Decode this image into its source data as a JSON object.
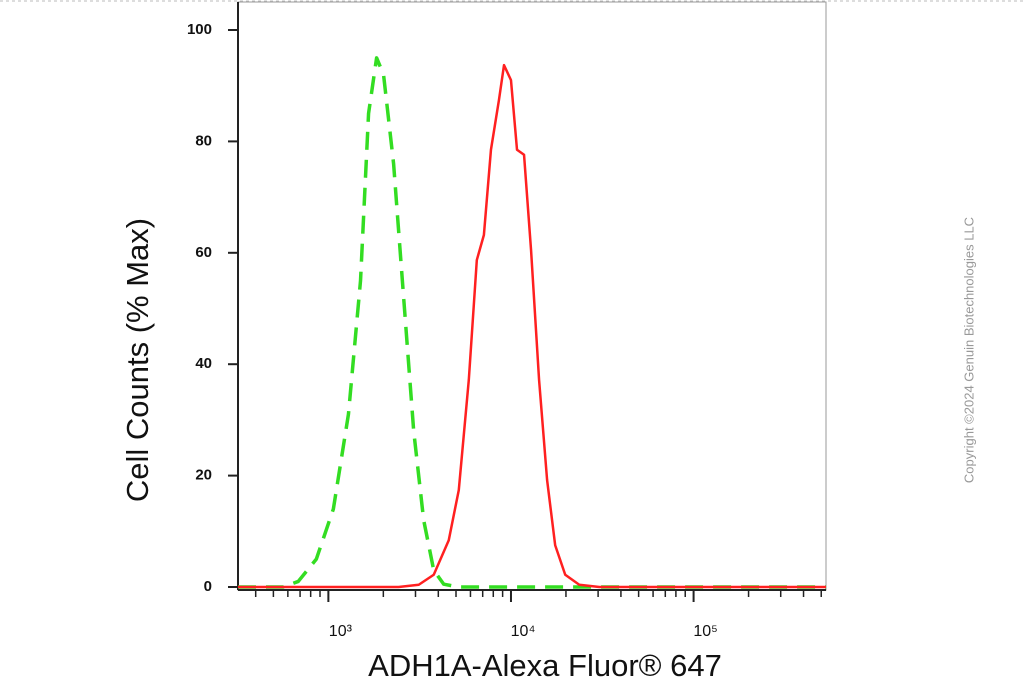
{
  "chart_data": {
    "type": "line",
    "x_label": "ADH1A-Alexa Fluor® 647",
    "y_label": "Cell Counts (% Max)",
    "watermark": "Copyright ©2024 Genuin Biotechnologies LLC",
    "xscale": "log",
    "xlim": [
      320,
      531000
    ],
    "ylim": [
      0,
      100
    ],
    "xticks": [
      {
        "value": 1000,
        "label": "10³"
      },
      {
        "value": 10000,
        "label": "10⁴"
      },
      {
        "value": 100000,
        "label": "10⁵"
      }
    ],
    "xminorticks": [
      400,
      500,
      600,
      700,
      800,
      900,
      2000,
      3000,
      4000,
      5000,
      6000,
      7000,
      8000,
      9000,
      20000,
      30000,
      40000,
      50000,
      60000,
      70000,
      80000,
      90000,
      200000,
      300000,
      400000,
      500000
    ],
    "yticks": [
      0,
      20,
      40,
      60,
      80,
      100
    ],
    "series": [
      {
        "color": "#33dd22",
        "style": "dashed",
        "x": [
          320,
          566,
          684,
          859,
          1065,
          1288,
          1500,
          1660,
          1837,
          2005,
          2276,
          2583,
          2933,
          3326,
          3776,
          4285,
          5178,
          531000
        ],
        "values": [
          0,
          0,
          1,
          5,
          14,
          31,
          55,
          85,
          95,
          92,
          76,
          52,
          28,
          12,
          3,
          0.5,
          0,
          0
        ]
      },
      {
        "color": "#ff2020",
        "style": "solid",
        "x": [
          320,
          2425,
          3126,
          3776,
          4563,
          5178,
          5876,
          6500,
          7107,
          7769,
          8590,
          9160,
          10000,
          10790,
          11790,
          12880,
          14250,
          15770,
          17460,
          19820,
          23650,
          30470,
          531000
        ],
        "values": [
          0,
          0,
          0.4,
          2.2,
          8.4,
          17.4,
          37.2,
          58.7,
          63.2,
          78.5,
          87.4,
          93.7,
          91,
          78.5,
          77.6,
          60.5,
          37.2,
          19.2,
          7.5,
          2.2,
          0.4,
          0,
          0
        ]
      }
    ]
  }
}
